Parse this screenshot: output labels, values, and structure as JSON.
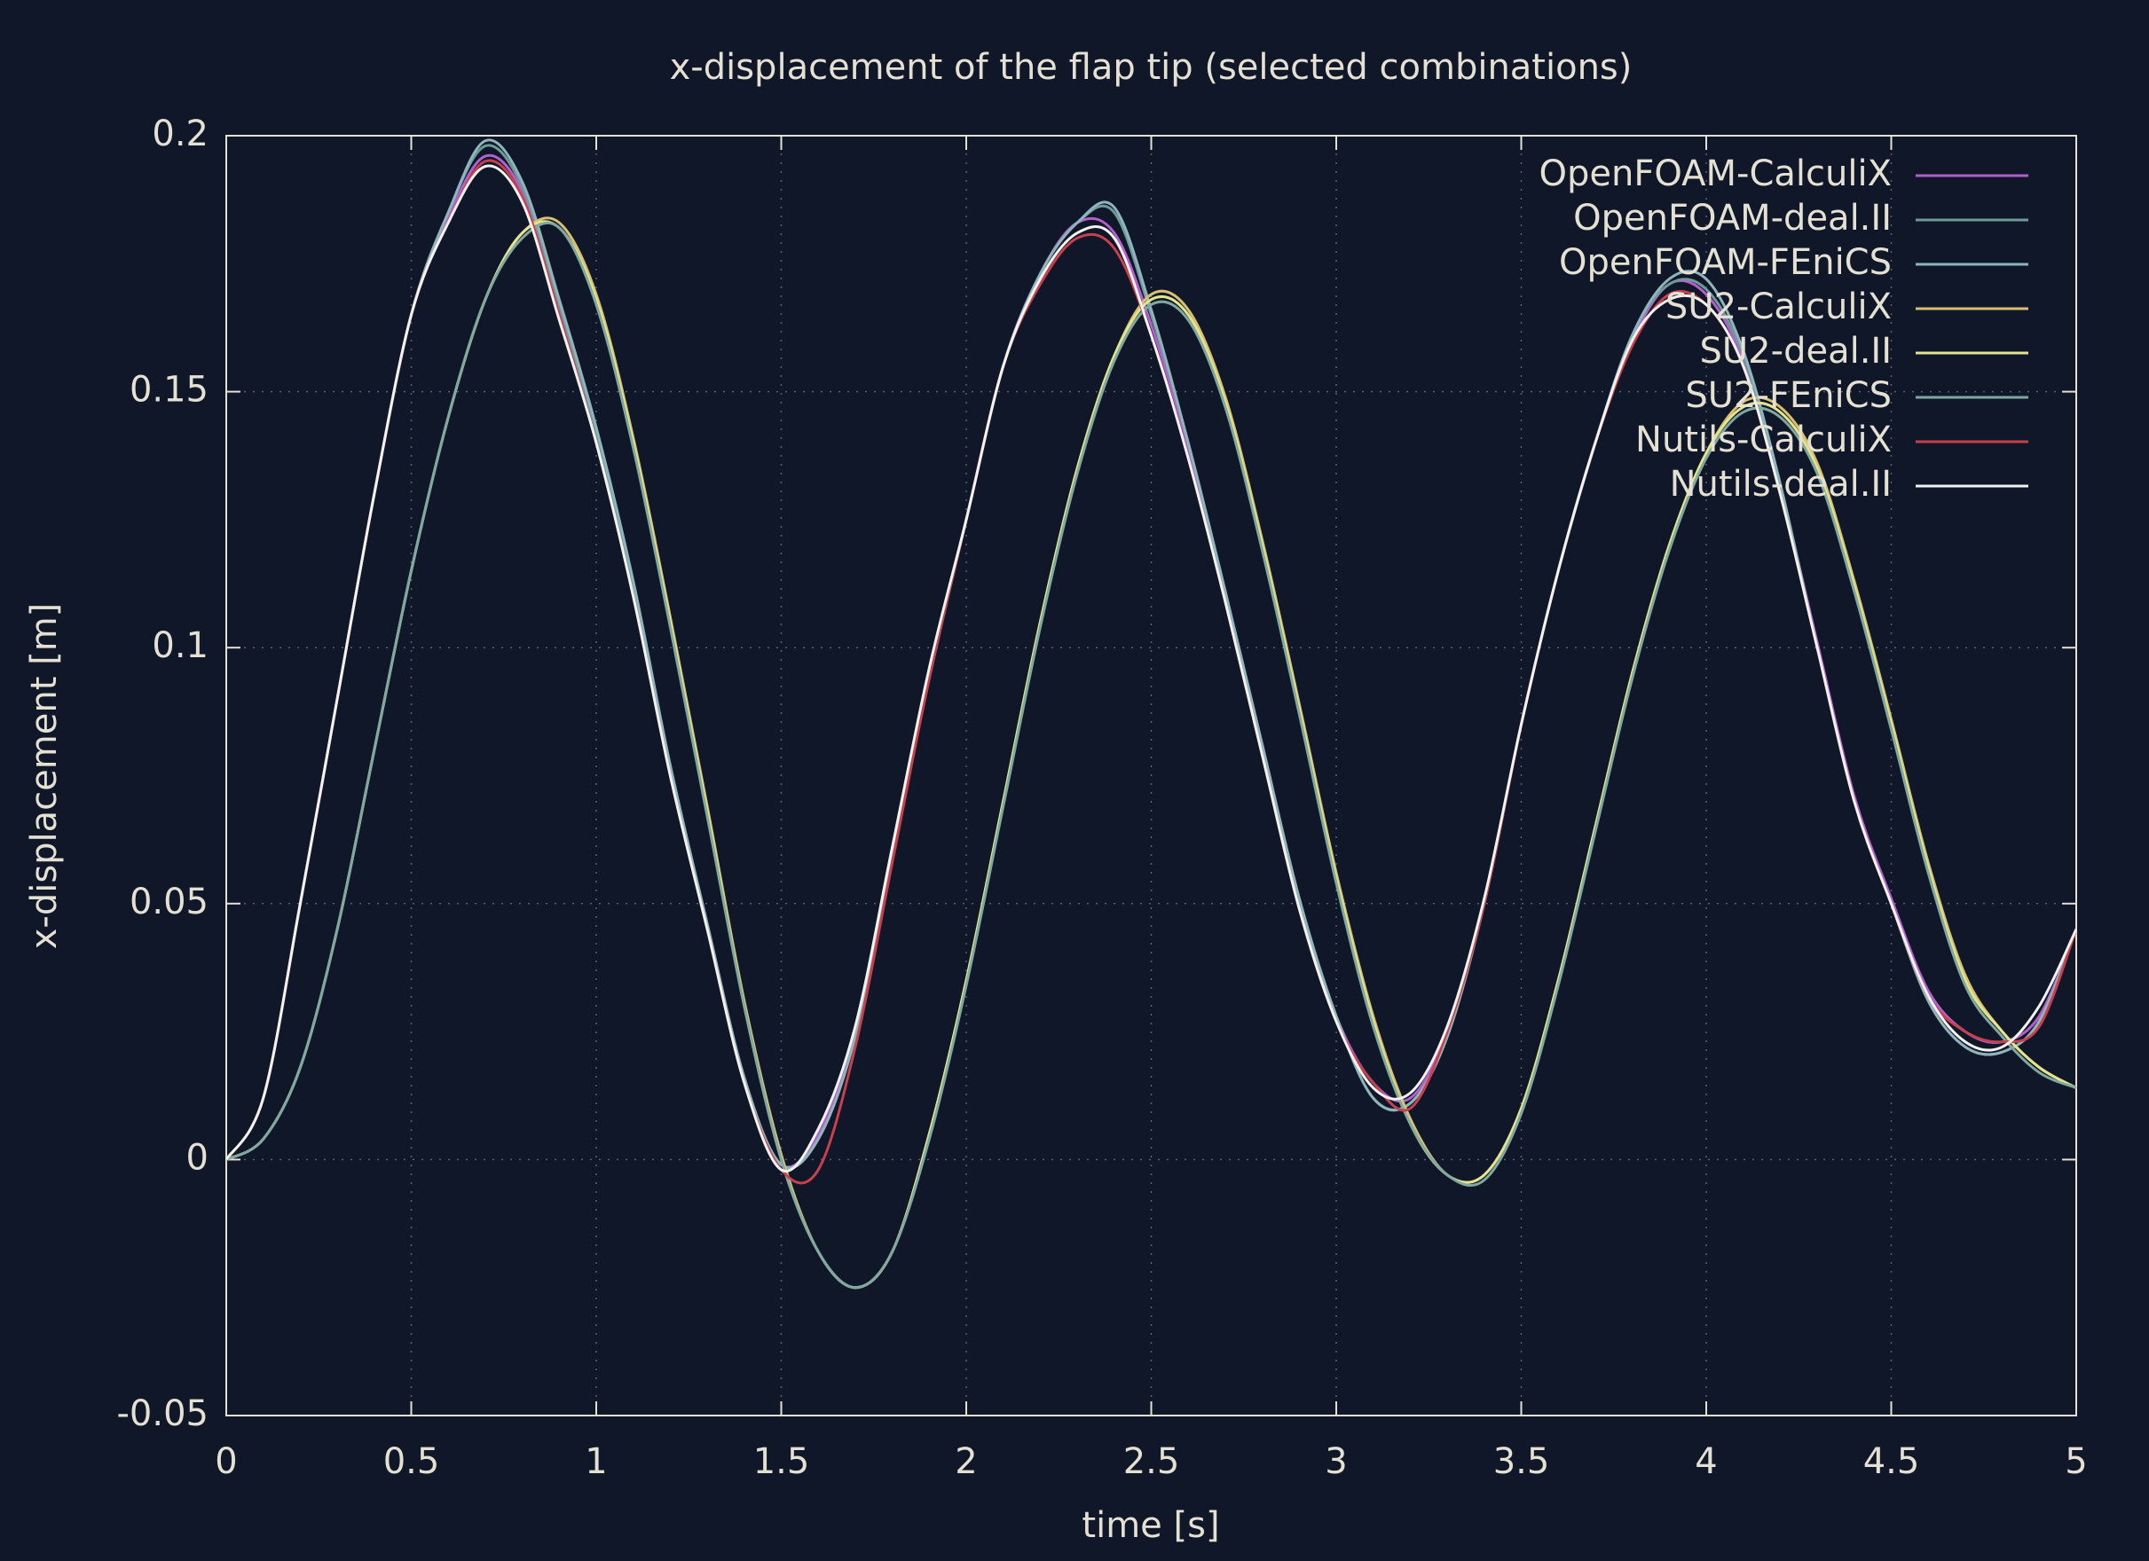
{
  "chart_data": {
    "type": "line",
    "title": "x-displacement of the flap tip (selected combinations)",
    "xlabel": "time [s]",
    "ylabel": "x-displacement [m]",
    "xlim": [
      0,
      5
    ],
    "ylim": [
      -0.05,
      0.2
    ],
    "xticks": [
      0,
      0.5,
      1,
      1.5,
      2,
      2.5,
      3,
      3.5,
      4,
      4.5,
      5
    ],
    "yticks": [
      -0.05,
      0,
      0.05,
      0.1,
      0.15,
      0.2
    ],
    "grid": true,
    "legend": "upper right",
    "x": [
      0,
      0.1,
      0.2,
      0.3,
      0.4,
      0.5,
      0.6,
      0.7,
      0.8,
      0.9,
      1,
      1.1,
      1.2,
      1.3,
      1.4,
      1.5,
      1.6,
      1.7,
      1.8,
      1.9,
      2,
      2.1,
      2.2,
      2.3,
      2.4,
      2.5,
      2.6,
      2.7,
      2.8,
      2.9,
      3,
      3.1,
      3.2,
      3.3,
      3.4,
      3.5,
      3.6,
      3.7,
      3.8,
      3.9,
      4,
      4.1,
      4.2,
      4.3,
      4.4,
      4.5,
      4.6,
      4.7,
      4.8,
      4.9,
      5
    ],
    "series": [
      {
        "name": "OpenFOAM-CalculiX",
        "color": "#b460cc",
        "values": [
          0,
          0.012,
          0.05,
          0.09,
          0.13,
          0.165,
          0.184,
          0.196,
          0.189,
          0.166,
          0.141,
          0.111,
          0.076,
          0.046,
          0.016,
          -0.001,
          0.005,
          0.025,
          0.06,
          0.095,
          0.125,
          0.155,
          0.173,
          0.183,
          0.181,
          0.163,
          0.139,
          0.111,
          0.081,
          0.051,
          0.028,
          0.015,
          0.012,
          0.025,
          0.05,
          0.085,
          0.115,
          0.14,
          0.16,
          0.171,
          0.169,
          0.156,
          0.131,
          0.101,
          0.071,
          0.051,
          0.033,
          0.025,
          0.023,
          0.028,
          0.045
        ]
      },
      {
        "name": "OpenFOAM-deal.II",
        "color": "#6f9a98",
        "values": [
          0,
          0.012,
          0.05,
          0.09,
          0.13,
          0.165,
          0.185,
          0.198,
          0.19,
          0.167,
          0.142,
          0.112,
          0.077,
          0.046,
          0.016,
          -0.001,
          0.004,
          0.024,
          0.059,
          0.094,
          0.125,
          0.155,
          0.173,
          0.183,
          0.185,
          0.165,
          0.14,
          0.111,
          0.081,
          0.051,
          0.028,
          0.012,
          0.011,
          0.024,
          0.05,
          0.085,
          0.115,
          0.14,
          0.161,
          0.171,
          0.17,
          0.157,
          0.131,
          0.1,
          0.07,
          0.05,
          0.031,
          0.022,
          0.021,
          0.027,
          0.045
        ]
      },
      {
        "name": "OpenFOAM-FEniCS",
        "color": "#8fb4bc",
        "values": [
          0,
          0.012,
          0.05,
          0.09,
          0.13,
          0.165,
          0.185,
          0.199,
          0.191,
          0.168,
          0.143,
          0.113,
          0.077,
          0.046,
          0.016,
          -0.001,
          0.004,
          0.024,
          0.059,
          0.094,
          0.125,
          0.155,
          0.173,
          0.183,
          0.186,
          0.166,
          0.14,
          0.111,
          0.081,
          0.051,
          0.028,
          0.012,
          0.011,
          0.024,
          0.05,
          0.085,
          0.115,
          0.14,
          0.161,
          0.172,
          0.172,
          0.158,
          0.132,
          0.1,
          0.07,
          0.05,
          0.031,
          0.022,
          0.021,
          0.027,
          0.045
        ]
      },
      {
        "name": "SU2-CalculiX",
        "color": "#d8c070",
        "values": [
          0,
          0.004,
          0.018,
          0.045,
          0.08,
          0.115,
          0.145,
          0.168,
          0.181,
          0.183,
          0.169,
          0.141,
          0.106,
          0.069,
          0.031,
          0.001,
          -0.018,
          -0.025,
          -0.018,
          0.005,
          0.035,
          0.07,
          0.105,
          0.135,
          0.157,
          0.169,
          0.166,
          0.149,
          0.121,
          0.089,
          0.056,
          0.028,
          0.008,
          -0.003,
          -0.003,
          0.01,
          0.035,
          0.065,
          0.095,
          0.12,
          0.138,
          0.148,
          0.147,
          0.136,
          0.113,
          0.086,
          0.058,
          0.036,
          0.025,
          0.018,
          0.014
        ]
      },
      {
        "name": "SU2-deal.II",
        "color": "#e4e48c",
        "values": [
          0,
          0.004,
          0.018,
          0.045,
          0.08,
          0.115,
          0.145,
          0.168,
          0.181,
          0.182,
          0.168,
          0.14,
          0.105,
          0.068,
          0.03,
          0.0,
          -0.018,
          -0.025,
          -0.018,
          0.005,
          0.035,
          0.07,
          0.105,
          0.135,
          0.157,
          0.168,
          0.165,
          0.148,
          0.12,
          0.088,
          0.055,
          0.027,
          0.007,
          -0.003,
          -0.003,
          0.01,
          0.035,
          0.065,
          0.095,
          0.12,
          0.138,
          0.147,
          0.146,
          0.135,
          0.112,
          0.085,
          0.057,
          0.035,
          0.025,
          0.018,
          0.014
        ]
      },
      {
        "name": "SU2-FEniCS",
        "color": "#7fa8a2",
        "values": [
          0,
          0.004,
          0.018,
          0.045,
          0.08,
          0.115,
          0.145,
          0.168,
          0.18,
          0.182,
          0.167,
          0.139,
          0.104,
          0.067,
          0.03,
          0.0,
          -0.018,
          -0.025,
          -0.018,
          0.004,
          0.034,
          0.069,
          0.104,
          0.134,
          0.156,
          0.167,
          0.164,
          0.147,
          0.119,
          0.087,
          0.054,
          0.026,
          0.007,
          -0.003,
          -0.004,
          0.009,
          0.034,
          0.064,
          0.094,
          0.119,
          0.137,
          0.146,
          0.145,
          0.134,
          0.111,
          0.084,
          0.056,
          0.034,
          0.024,
          0.017,
          0.014
        ]
      },
      {
        "name": "Nutils-CalculiX",
        "color": "#c8404c",
        "values": [
          0,
          0.012,
          0.05,
          0.09,
          0.13,
          0.165,
          0.183,
          0.195,
          0.188,
          0.165,
          0.14,
          0.11,
          0.075,
          0.045,
          0.015,
          -0.002,
          -0.002,
          0.022,
          0.058,
          0.094,
          0.125,
          0.155,
          0.171,
          0.18,
          0.178,
          0.161,
          0.137,
          0.109,
          0.079,
          0.049,
          0.027,
          0.015,
          0.01,
          0.025,
          0.05,
          0.085,
          0.115,
          0.14,
          0.159,
          0.169,
          0.167,
          0.155,
          0.13,
          0.1,
          0.07,
          0.05,
          0.032,
          0.025,
          0.023,
          0.026,
          0.045
        ]
      },
      {
        "name": "Nutils-deal.II",
        "color": "#f2f2ee",
        "values": [
          0,
          0.012,
          0.05,
          0.09,
          0.13,
          0.165,
          0.183,
          0.194,
          0.187,
          0.164,
          0.14,
          0.11,
          0.075,
          0.045,
          0.015,
          -0.002,
          0.006,
          0.026,
          0.061,
          0.096,
          0.125,
          0.155,
          0.172,
          0.181,
          0.18,
          0.161,
          0.137,
          0.109,
          0.079,
          0.049,
          0.027,
          0.014,
          0.013,
          0.026,
          0.051,
          0.085,
          0.115,
          0.14,
          0.16,
          0.168,
          0.167,
          0.155,
          0.13,
          0.1,
          0.07,
          0.05,
          0.032,
          0.023,
          0.022,
          0.03,
          0.045
        ]
      }
    ]
  }
}
